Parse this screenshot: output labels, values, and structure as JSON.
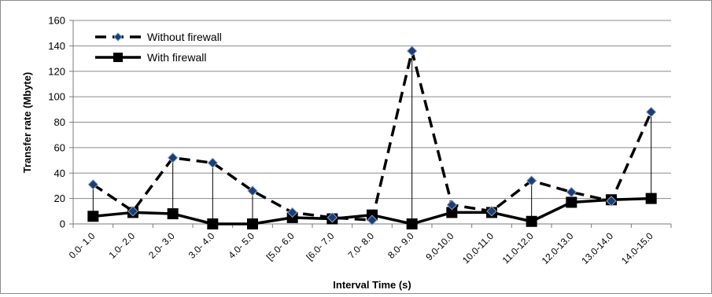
{
  "chart_data": {
    "type": "line",
    "xlabel": "Interval Time (s)",
    "ylabel": "Transfer rate (Mbyte)",
    "ylim": [
      0,
      160
    ],
    "yticks": [
      0,
      20,
      40,
      60,
      80,
      100,
      120,
      140,
      160
    ],
    "grid": true,
    "legend_position": "top-left",
    "categories": [
      "0.0- 1.0",
      "1.0- 2.0",
      "2.0- 3.0",
      "3.0- 4.0",
      "4.0- 5.0",
      "[5.0- 6.0",
      "[6.0- 7.0",
      "7.0- 8.0",
      "8.0- 9.0",
      "9.0-10.0",
      "10.0-11.0",
      "11.0-12.0",
      "12.0-13.0",
      "13.0-14.0",
      "14.0-15.0"
    ],
    "series": [
      {
        "name": "Without firewall",
        "style": "dashed",
        "marker": "diamond",
        "color": "#000000",
        "marker_color": "#1f3d6e",
        "values": [
          31,
          10,
          52,
          48,
          26,
          9,
          5,
          3,
          136,
          15,
          10,
          34,
          25,
          18,
          88
        ]
      },
      {
        "name": "With firewall",
        "style": "solid",
        "marker": "square",
        "color": "#000000",
        "marker_color": "#000000",
        "values": [
          6,
          9,
          8,
          0,
          0,
          5,
          4,
          7,
          0,
          9,
          9,
          2,
          17,
          19,
          20
        ]
      }
    ]
  }
}
